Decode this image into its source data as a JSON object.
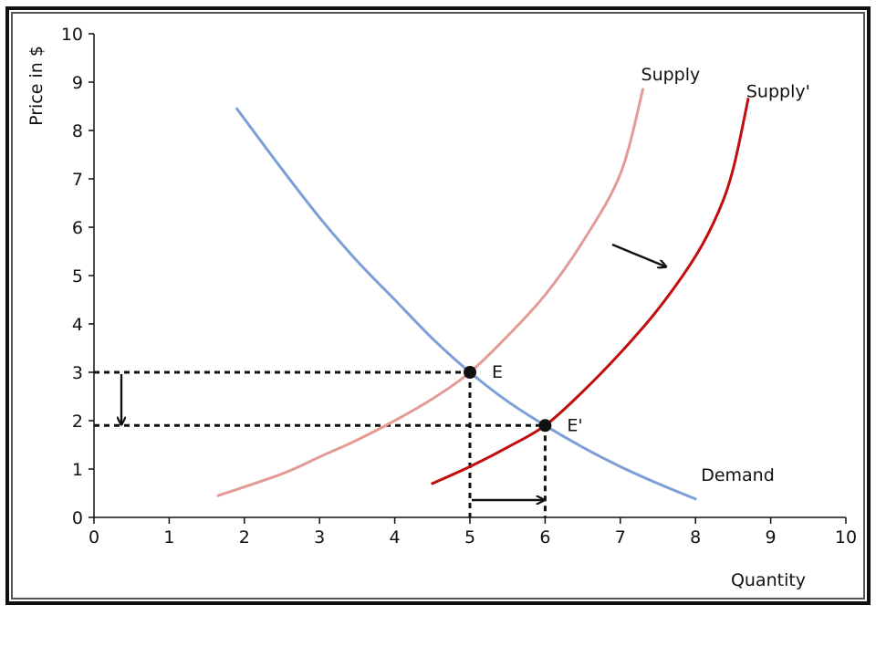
{
  "chart_data": {
    "type": "line",
    "xlabel": "Quantity",
    "ylabel": "Price in $",
    "xlim": [
      0,
      10
    ],
    "ylim": [
      0,
      10
    ],
    "x_ticks": [
      "0",
      "1",
      "2",
      "3",
      "4",
      "5",
      "6",
      "7",
      "8",
      "9",
      "10"
    ],
    "y_ticks": [
      "0",
      "1",
      "2",
      "3",
      "4",
      "5",
      "6",
      "7",
      "8",
      "9",
      "10"
    ],
    "grid": false,
    "series": [
      {
        "name": "Demand",
        "color": "#7c9fd8",
        "points": [
          [
            1.9,
            8.45
          ],
          [
            2.5,
            7.2
          ],
          [
            3.0,
            6.2
          ],
          [
            3.5,
            5.3
          ],
          [
            4.0,
            4.5
          ],
          [
            4.5,
            3.7
          ],
          [
            5.0,
            3.0
          ],
          [
            5.5,
            2.4
          ],
          [
            6.0,
            1.9
          ],
          [
            6.5,
            1.45
          ],
          [
            7.0,
            1.05
          ],
          [
            7.5,
            0.7
          ],
          [
            8.0,
            0.38
          ]
        ]
      },
      {
        "name": "Supply",
        "color": "#e39b96",
        "points": [
          [
            1.65,
            0.45
          ],
          [
            2.5,
            0.9
          ],
          [
            3.0,
            1.25
          ],
          [
            3.5,
            1.6
          ],
          [
            4.0,
            2.0
          ],
          [
            4.5,
            2.45
          ],
          [
            5.0,
            3.0
          ],
          [
            5.5,
            3.75
          ],
          [
            6.0,
            4.6
          ],
          [
            6.5,
            5.7
          ],
          [
            7.0,
            7.1
          ],
          [
            7.3,
            8.85
          ]
        ]
      },
      {
        "name": "Supply'",
        "color": "#c00d0d",
        "points": [
          [
            4.5,
            0.7
          ],
          [
            5.0,
            1.05
          ],
          [
            5.5,
            1.45
          ],
          [
            6.0,
            1.9
          ],
          [
            6.5,
            2.6
          ],
          [
            7.0,
            3.4
          ],
          [
            7.5,
            4.3
          ],
          [
            8.0,
            5.4
          ],
          [
            8.3,
            6.3
          ],
          [
            8.5,
            7.2
          ],
          [
            8.7,
            8.65
          ]
        ]
      }
    ],
    "points": [
      {
        "label": "E",
        "x": 5,
        "y": 3
      },
      {
        "label": "E'",
        "x": 6,
        "y": 1.9
      }
    ]
  }
}
